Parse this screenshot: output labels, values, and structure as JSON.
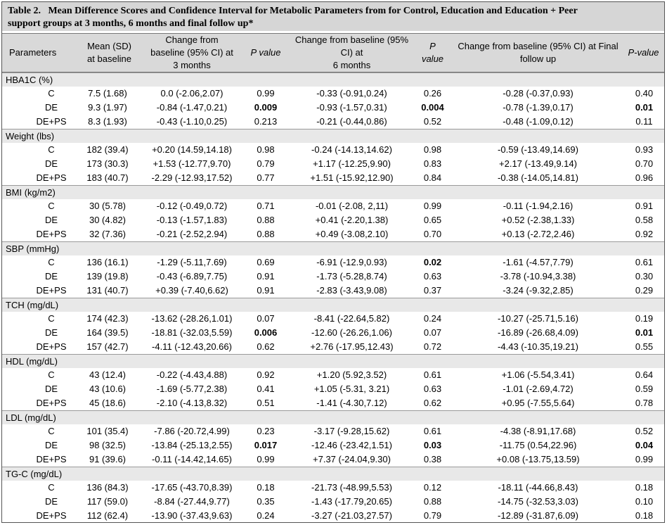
{
  "title": {
    "label": "Table 2.",
    "text_line1": "Mean Difference Scores and Confidence Interval for Metabolic Parameters from for Control, Education and Education + Peer",
    "text_line2": "support groups at 3 months, 6 months and final follow up*"
  },
  "columns": {
    "parameters": "Parameters",
    "mean_l1": "Mean (SD)",
    "mean_l2": "at baseline",
    "ch3_l1": "Change from",
    "ch3_l2": "baseline (95% CI) at",
    "ch3_l3": "3 months",
    "p3": "P value",
    "ch6_l1": "Change from baseline (95%",
    "ch6_l2": "CI) at",
    "ch6_l3": "6 months",
    "p6_l1": "P",
    "p6_l2": "value",
    "chf_l1": "Change from baseline (95% CI) at Final",
    "chf_l2": "follow up",
    "pf": "P-value"
  },
  "groups": [
    {
      "name": "HBA1C (%)",
      "rows": [
        {
          "group": "C",
          "mean": "7.5 (1.68)",
          "ch3": "0.0 (-2.06,2.07)",
          "p3": "0.99",
          "p3_bold": false,
          "ch6": "-0.33 (-0.91,0.24)",
          "p6": "0.26",
          "p6_bold": false,
          "chf": "-0.28 (-0.37,0.93)",
          "pf": "0.40",
          "pf_bold": false
        },
        {
          "group": "DE",
          "mean": "9.3 (1.97)",
          "ch3": "-0.84 (-1.47,0.21)",
          "p3": "0.009",
          "p3_bold": true,
          "ch6": "-0.93 (-1.57,0.31)",
          "p6": "0.004",
          "p6_bold": true,
          "chf": "-0.78 (-1.39,0.17)",
          "pf": "0.01",
          "pf_bold": true
        },
        {
          "group": "DE+PS",
          "mean": "8.3 (1.93)",
          "ch3": "-0.43 (-1.10,0.25)",
          "p3": "0.213",
          "p3_bold": false,
          "ch6": "-0.21 (-0.44,0.86)",
          "p6": "0.52",
          "p6_bold": false,
          "chf": "-0.48 (-1.09,0.12)",
          "pf": "0.11",
          "pf_bold": false
        }
      ]
    },
    {
      "name": "Weight (lbs)",
      "rows": [
        {
          "group": "C",
          "mean": "182 (39.4)",
          "ch3": "+0.20 (14.59,14.18)",
          "p3": "0.98",
          "p3_bold": false,
          "ch6": "-0.24 (-14.13,14.62)",
          "p6": "0.98",
          "p6_bold": false,
          "chf": "-0.59 (-13.49,14.69)",
          "pf": "0.93",
          "pf_bold": false
        },
        {
          "group": "DE",
          "mean": "173 (30.3)",
          "ch3": "+1.53 (-12.77,9.70)",
          "p3": "0.79",
          "p3_bold": false,
          "ch6": "+1.17 (-12.25,9.90)",
          "p6": "0.83",
          "p6_bold": false,
          "chf": "+2.17 (-13.49,9.14)",
          "pf": "0.70",
          "pf_bold": false
        },
        {
          "group": "DE+PS",
          "mean": "183 (40.7)",
          "ch3": "-2.29 (-12.93,17.52)",
          "p3": "0.77",
          "p3_bold": false,
          "ch6": "+1.51 (-15.92,12.90)",
          "p6": "0.84",
          "p6_bold": false,
          "chf": "-0.38 (-14.05,14.81)",
          "pf": "0.96",
          "pf_bold": false
        }
      ]
    },
    {
      "name": "BMI (kg/m2)",
      "rows": [
        {
          "group": "C",
          "mean": "30 (5.78)",
          "ch3": "-0.12 (-0.49,0.72)",
          "p3": "0.71",
          "p3_bold": false,
          "ch6": "-0.01 (-2.08, 2,11)",
          "p6": "0.99",
          "p6_bold": false,
          "chf": "-0.11 (-1.94,2.16)",
          "pf": "0.91",
          "pf_bold": false
        },
        {
          "group": "DE",
          "mean": "30 (4.82)",
          "ch3": "-0.13 (-1.57,1.83)",
          "p3": "0.88",
          "p3_bold": false,
          "ch6": "+0.41 (-2.20,1.38)",
          "p6": "0.65",
          "p6_bold": false,
          "chf": "+0.52 (-2.38,1.33)",
          "pf": "0.58",
          "pf_bold": false
        },
        {
          "group": "DE+PS",
          "mean": "32 (7.36)",
          "ch3": "-0.21 (-2.52,2.94)",
          "p3": "0.88",
          "p3_bold": false,
          "ch6": "+0.49 (-3.08,2.10)",
          "p6": "0.70",
          "p6_bold": false,
          "chf": "+0.13 (-2.72,2.46)",
          "pf": "0.92",
          "pf_bold": false
        }
      ]
    },
    {
      "name": "SBP (mmHg)",
      "rows": [
        {
          "group": "C",
          "mean": "136 (16.1)",
          "ch3": "-1.29 (-5.11,7.69)",
          "p3": "0.69",
          "p3_bold": false,
          "ch6": "-6.91 (-12.9,0.93)",
          "p6": "0.02",
          "p6_bold": true,
          "chf": "-1.61 (-4.57,7.79)",
          "pf": "0.61",
          "pf_bold": false
        },
        {
          "group": "DE",
          "mean": "139 (19.8)",
          "ch3": "-0.43 (-6.89,7.75)",
          "p3": "0.91",
          "p3_bold": false,
          "ch6": "-1.73 (-5.28,8.74)",
          "p6": "0.63",
          "p6_bold": false,
          "chf": "-3.78 (-10.94,3.38)",
          "pf": "0.30",
          "pf_bold": false
        },
        {
          "group": "DE+PS",
          "mean": "131 (40.7)",
          "ch3": "+0.39 (-7.40,6.62)",
          "p3": "0.91",
          "p3_bold": false,
          "ch6": "-2.83 (-3.43,9.08)",
          "p6": "0.37",
          "p6_bold": false,
          "chf": "-3.24 (-9.32,2.85)",
          "pf": "0.29",
          "pf_bold": false
        }
      ]
    },
    {
      "name": "TCH (mg/dL)",
      "rows": [
        {
          "group": "C",
          "mean": "174 (42.3)",
          "ch3": "-13.62 (-28.26,1.01)",
          "p3": "0.07",
          "p3_bold": false,
          "ch6": "-8.41 (-22.64,5.82)",
          "p6": "0.24",
          "p6_bold": false,
          "chf": "-10.27 (-25.71,5.16)",
          "pf": "0.19",
          "pf_bold": false
        },
        {
          "group": "DE",
          "mean": "164 (39.5)",
          "ch3": "-18.81 (-32.03,5.59)",
          "p3": "0.006",
          "p3_bold": true,
          "ch6": "-12.60 (-26.26,1.06)",
          "p6": "0.07",
          "p6_bold": false,
          "chf": "-16.89 (-26.68,4.09)",
          "pf": "0.01",
          "pf_bold": true
        },
        {
          "group": "DE+PS",
          "mean": "157 (42.7)",
          "ch3": "-4.11 (-12.43,20.66)",
          "p3": "0.62",
          "p3_bold": false,
          "ch6": "+2.76 (-17.95,12.43)",
          "p6": "0.72",
          "p6_bold": false,
          "chf": "-4.43 (-10.35,19.21)",
          "pf": "0.55",
          "pf_bold": false
        }
      ]
    },
    {
      "name": "HDL (mg/dL)",
      "rows": [
        {
          "group": "C",
          "mean": "43 (12.4)",
          "ch3": "-0.22 (-4.43,4.88)",
          "p3": "0.92",
          "p3_bold": false,
          "ch6": "+1.20 (5.92,3.52)",
          "p6": "0.61",
          "p6_bold": false,
          "chf": "+1.06 (-5.54,3.41)",
          "pf": "0.64",
          "pf_bold": false
        },
        {
          "group": "DE",
          "mean": "43 (10.6)",
          "ch3": "-1.69 (-5.77,2.38)",
          "p3": "0.41",
          "p3_bold": false,
          "ch6": "+1.05 (-5.31, 3.21)",
          "p6": "0.63",
          "p6_bold": false,
          "chf": "-1.01 (-2.69,4.72)",
          "pf": "0.59",
          "pf_bold": false
        },
        {
          "group": "DE+PS",
          "mean": "45 (18.6)",
          "ch3": "-2.10 (-4.13,8.32)",
          "p3": "0.51",
          "p3_bold": false,
          "ch6": "-1.41 (-4.30,7.12)",
          "p6": "0.62",
          "p6_bold": false,
          "chf": "+0.95 (-7.55,5.64)",
          "pf": "0.78",
          "pf_bold": false
        }
      ]
    },
    {
      "name": "LDL (mg/dL)",
      "rows": [
        {
          "group": "C",
          "mean": "101 (35.4)",
          "ch3": "-7.86 (-20.72,4.99)",
          "p3": "0.23",
          "p3_bold": false,
          "ch6": "-3.17 (-9.28,15.62)",
          "p6": "0.61",
          "p6_bold": false,
          "chf": "-4.38 (-8.91,17.68)",
          "pf": "0.52",
          "pf_bold": false
        },
        {
          "group": "DE",
          "mean": "98 (32.5)",
          "ch3": "-13.84 (-25.13,2.55)",
          "p3": "0.017",
          "p3_bold": true,
          "ch6": "-12.46 (-23.42,1.51)",
          "p6": "0.03",
          "p6_bold": true,
          "chf": "-11.75 (0.54,22.96)",
          "pf": "0.04",
          "pf_bold": true
        },
        {
          "group": "DE+PS",
          "mean": "91 (39.6)",
          "ch3": "-0.11 (-14.42,14.65)",
          "p3": "0.99",
          "p3_bold": false,
          "ch6": "+7.37 (-24.04,9.30)",
          "p6": "0.38",
          "p6_bold": false,
          "chf": "+0.08 (-13.75,13.59)",
          "pf": "0.99",
          "pf_bold": false
        }
      ]
    },
    {
      "name": "TG-C (mg/dL)",
      "rows": [
        {
          "group": "C",
          "mean": "136 (84.3)",
          "ch3": "-17.65 (-43.70,8.39)",
          "p3": "0.18",
          "p3_bold": false,
          "ch6": "-21.73 (-48.99,5.53)",
          "p6": "0.12",
          "p6_bold": false,
          "chf": "-18.11 (-44.66,8.43)",
          "pf": "0.18",
          "pf_bold": false
        },
        {
          "group": "DE",
          "mean": "117 (59.0)",
          "ch3": "-8.84 (-27.44,9.77)",
          "p3": "0.35",
          "p3_bold": false,
          "ch6": "-1.43 (-17.79,20.65)",
          "p6": "0.88",
          "p6_bold": false,
          "chf": "-14.75 (-32.53,3.03)",
          "pf": "0.10",
          "pf_bold": false
        },
        {
          "group": "DE+PS",
          "mean": "112 (62.4)",
          "ch3": "-13.90 (-37.43,9.63)",
          "p3": "0.24",
          "p3_bold": false,
          "ch6": "-3.27 (-21.03,27.57)",
          "p6": "0.79",
          "p6_bold": false,
          "chf": "-12.89 (-31.87,6.09)",
          "pf": "0.18",
          "pf_bold": false
        }
      ]
    }
  ]
}
